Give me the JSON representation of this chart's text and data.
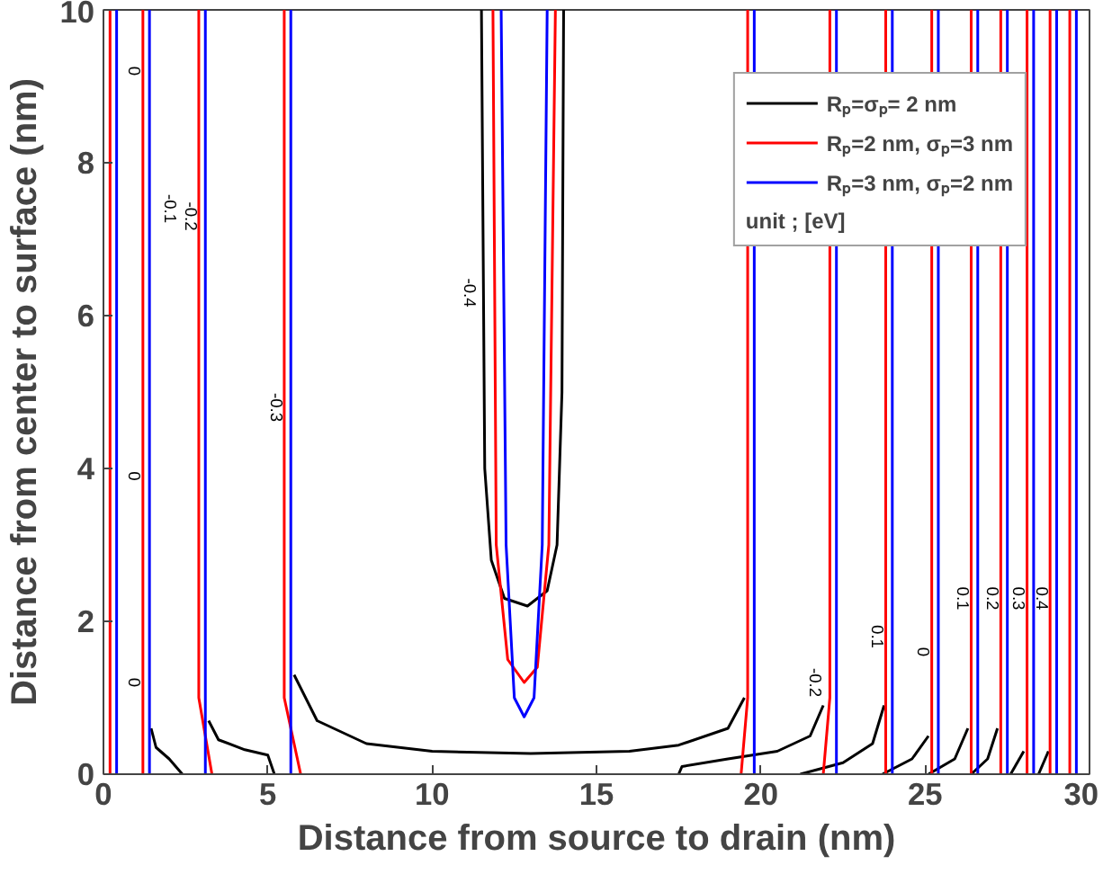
{
  "chart_data": {
    "type": "line",
    "xlabel": "Distance from source to drain (nm)",
    "ylabel": "Distance from center to surface (nm)",
    "xlim": [
      0,
      30
    ],
    "ylim": [
      0,
      10
    ],
    "xticks": [
      0,
      5,
      10,
      15,
      20,
      25,
      30
    ],
    "yticks": [
      0,
      2,
      4,
      6,
      8,
      10
    ],
    "grid": false,
    "legend": "top right",
    "legend_title": "unit ; [eV]",
    "marker": "none",
    "line_style": "solid",
    "series": [
      {
        "name": "Rₚ=σₚ= 2 nm",
        "color": "#000000",
        "x": [
          5.8,
          6.5,
          8,
          10,
          13,
          16,
          17.5,
          19,
          19.5
        ],
        "values": [
          1.3,
          0.7,
          0.4,
          0.3,
          0.27,
          0.3,
          0.38,
          0.6,
          1.0
        ]
      },
      {
        "color": "#000000",
        "x": [
          1.45,
          1.6,
          2.0,
          2.4
        ],
        "values": [
          0.6,
          0.35,
          0.2,
          0
        ]
      },
      {
        "color": "#000000",
        "x": [
          3.2,
          3.5,
          4.3,
          5.0,
          5.2
        ],
        "values": [
          0.7,
          0.45,
          0.32,
          0.25,
          0
        ]
      },
      {
        "color": "#000000",
        "x": [
          11.5,
          11.6,
          11.8,
          12.2,
          12.9,
          13.5,
          13.8,
          13.95,
          14.0
        ],
        "values": [
          10,
          4,
          2.8,
          2.3,
          2.2,
          2.4,
          3,
          5,
          10
        ]
      },
      {
        "color": "#000000",
        "x": [
          17.5,
          17.6,
          19,
          20.5,
          21.5,
          21.9
        ],
        "values": [
          0,
          0.1,
          0.2,
          0.3,
          0.5,
          0.9
        ]
      },
      {
        "color": "#000000",
        "x": [
          21.2,
          22.5,
          23.4,
          23.75
        ],
        "values": [
          0,
          0.15,
          0.4,
          0.9
        ]
      },
      {
        "color": "#000000",
        "x": [
          23.7,
          24.6,
          25.1
        ],
        "values": [
          0,
          0.2,
          0.5
        ]
      },
      {
        "color": "#000000",
        "x": [
          25.1,
          25.9,
          26.3
        ],
        "values": [
          0,
          0.2,
          0.6
        ]
      },
      {
        "color": "#000000",
        "x": [
          26.4,
          26.9,
          27.2
        ],
        "values": [
          0,
          0.2,
          0.6
        ]
      },
      {
        "color": "#000000",
        "x": [
          27.6,
          28.0
        ],
        "values": [
          0,
          0.3
        ]
      },
      {
        "color": "#000000",
        "x": [
          28.45,
          28.75
        ],
        "values": [
          0,
          0.3
        ]
      },
      {
        "name": "Rₚ=2 nm, σₚ=3 nm",
        "color": "#ff0000",
        "x": [
          11.85,
          11.95,
          12.3,
          12.8,
          13.2,
          13.55,
          13.75
        ],
        "values": [
          10,
          3,
          1.5,
          1.2,
          1.4,
          3,
          10
        ]
      },
      {
        "color": "#ff0000",
        "x": [
          0.2,
          0.2
        ],
        "values": [
          10,
          0
        ]
      },
      {
        "color": "#ff0000",
        "x": [
          1.2,
          1.2
        ],
        "values": [
          10,
          0
        ]
      },
      {
        "color": "#ff0000",
        "x": [
          2.9,
          2.9,
          3.3
        ],
        "values": [
          10,
          1.0,
          0
        ]
      },
      {
        "color": "#ff0000",
        "x": [
          5.5,
          5.5,
          6.0
        ],
        "values": [
          10,
          1.0,
          0
        ]
      },
      {
        "color": "#ff0000",
        "x": [
          19.6,
          19.6,
          19.4
        ],
        "values": [
          10,
          1.0,
          0
        ]
      },
      {
        "color": "#ff0000",
        "x": [
          22.1,
          22.1,
          21.9
        ],
        "values": [
          10,
          1.0,
          0
        ]
      },
      {
        "color": "#ff0000",
        "x": [
          23.8,
          23.8
        ],
        "values": [
          10,
          0
        ]
      },
      {
        "color": "#ff0000",
        "x": [
          25.2,
          25.2
        ],
        "values": [
          10,
          0
        ]
      },
      {
        "color": "#ff0000",
        "x": [
          26.4,
          26.4
        ],
        "values": [
          10,
          0
        ]
      },
      {
        "color": "#ff0000",
        "x": [
          27.3,
          27.3
        ],
        "values": [
          10,
          0
        ]
      },
      {
        "color": "#ff0000",
        "x": [
          28.1,
          28.1
        ],
        "values": [
          10,
          0
        ]
      },
      {
        "color": "#ff0000",
        "x": [
          28.8,
          28.8
        ],
        "values": [
          10,
          0
        ]
      },
      {
        "color": "#ff0000",
        "x": [
          29.4,
          29.4
        ],
        "values": [
          10,
          0
        ]
      },
      {
        "name": "Rₚ=3 nm, σₚ=2 nm",
        "color": "#0000ff",
        "x": [
          12.1,
          12.25,
          12.5,
          12.8,
          13.1,
          13.35,
          13.5
        ],
        "values": [
          10,
          3,
          1.0,
          0.75,
          1.0,
          3,
          10
        ]
      },
      {
        "color": "#0000ff",
        "x": [
          0.4,
          0.4
        ],
        "values": [
          10,
          0
        ]
      },
      {
        "color": "#0000ff",
        "x": [
          1.4,
          1.4
        ],
        "values": [
          10,
          0
        ]
      },
      {
        "color": "#0000ff",
        "x": [
          3.1,
          3.1
        ],
        "values": [
          10,
          0
        ]
      },
      {
        "color": "#0000ff",
        "x": [
          5.7,
          5.7
        ],
        "values": [
          10,
          0
        ]
      },
      {
        "color": "#0000ff",
        "x": [
          19.8,
          19.8
        ],
        "values": [
          10,
          0
        ]
      },
      {
        "color": "#0000ff",
        "x": [
          22.3,
          22.3
        ],
        "values": [
          10,
          0
        ]
      },
      {
        "color": "#0000ff",
        "x": [
          24.0,
          24.0
        ],
        "values": [
          10,
          0
        ]
      },
      {
        "color": "#0000ff",
        "x": [
          25.4,
          25.4
        ],
        "values": [
          10,
          0
        ]
      },
      {
        "color": "#0000ff",
        "x": [
          26.6,
          26.6
        ],
        "values": [
          10,
          0
        ]
      },
      {
        "color": "#0000ff",
        "x": [
          27.5,
          27.5
        ],
        "values": [
          10,
          0
        ]
      },
      {
        "color": "#0000ff",
        "x": [
          28.3,
          28.3
        ],
        "values": [
          10,
          0
        ]
      },
      {
        "color": "#0000ff",
        "x": [
          29.0,
          29.0
        ],
        "values": [
          10,
          0
        ]
      },
      {
        "color": "#0000ff",
        "x": [
          29.6,
          29.6
        ],
        "values": [
          10,
          0
        ]
      }
    ],
    "annotations": [
      {
        "text": "0",
        "x": 0.2,
        "y": 9.2
      },
      {
        "text": "0",
        "x": 0.2,
        "y": 3.9
      },
      {
        "text": "0",
        "x": 0.2,
        "y": 1.2
      },
      {
        "text": "-0.1",
        "x": 1.3,
        "y": 7.4
      },
      {
        "text": "-0.2",
        "x": 3.0,
        "y": 7.3
      },
      {
        "text": "-0.3",
        "x": 5.6,
        "y": 4.8
      },
      {
        "text": "-0.4",
        "x": 11.5,
        "y": 6.3
      },
      {
        "text": "-0.2",
        "x": 22.0,
        "y": 1.2
      },
      {
        "text": "0.1",
        "x": 23.9,
        "y": 1.8
      },
      {
        "text": "0",
        "x": 25.3,
        "y": 1.6
      },
      {
        "text": "0.1",
        "x": 26.5,
        "y": 2.3
      },
      {
        "text": "0.2",
        "x": 27.4,
        "y": 2.3
      },
      {
        "text": "0.3",
        "x": 28.2,
        "y": 2.3
      },
      {
        "text": "0.4",
        "x": 28.9,
        "y": 2.3
      }
    ]
  }
}
